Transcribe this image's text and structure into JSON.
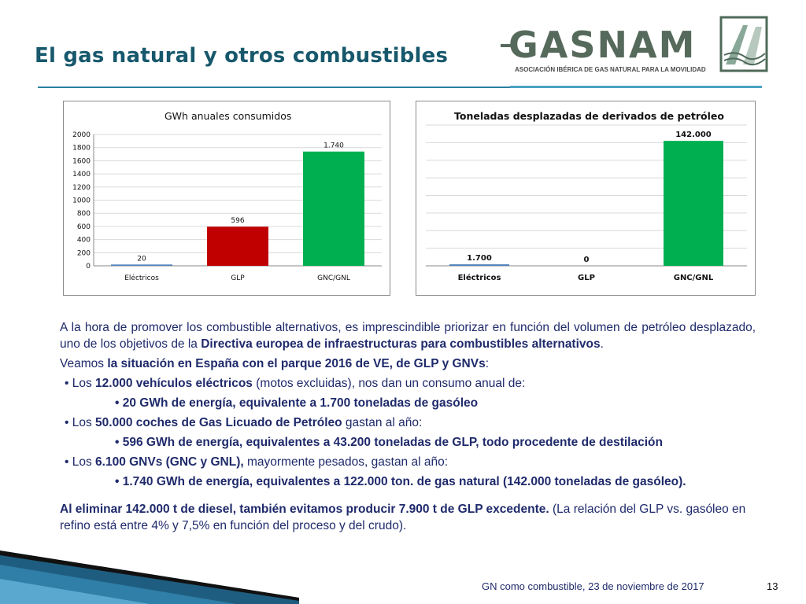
{
  "title": "El gas natural y otros combustibles",
  "logo": {
    "name": "GASNAM",
    "subtitle": "ASOCIACIÓN IBÉRICA DE GAS NATURAL PARA LA MOVILIDAD"
  },
  "colors": {
    "blue_bar": "#4f81bd",
    "red_bar": "#c00000",
    "green_bar": "#00b050",
    "title": "#17586c",
    "text": "#1f2a6b"
  },
  "chart_data": [
    {
      "type": "bar",
      "title": "GWh anuales consumidos",
      "categories": [
        "Eléctricos",
        "GLP",
        "GNC/GNL"
      ],
      "values": [
        20,
        596,
        1740
      ],
      "data_labels": [
        "20",
        "596",
        "1.740"
      ],
      "bar_colors": [
        "#4f81bd",
        "#c00000",
        "#00b050"
      ],
      "ylim": [
        0,
        2000
      ],
      "yticks": [
        0,
        200,
        400,
        600,
        800,
        1000,
        1200,
        1400,
        1600,
        1800,
        2000
      ],
      "grid": true,
      "legend": "none"
    },
    {
      "type": "bar",
      "title": "Toneladas desplazadas de derivados de petróleo",
      "categories": [
        "Eléctricos",
        "GLP",
        "GNC/GNL"
      ],
      "values": [
        1700,
        0,
        142000
      ],
      "data_labels": [
        "1.700",
        "0",
        "142.000"
      ],
      "bar_colors": [
        "#4f81bd",
        "#c00000",
        "#00b050"
      ],
      "ylim": [
        0,
        160000
      ],
      "grid": true,
      "legend": "none"
    }
  ],
  "body": {
    "p1_a": "A la hora de promover los combustible alternativos, es imprescindible priorizar en función del volumen de petróleo desplazado, uno de los objetivos de la ",
    "p1_b": "Directiva europea de infraestructuras para combustibles alternativos",
    "p1_c": ".",
    "p2_a": "Veamos ",
    "p2_b": "la situación en España con el parque 2016 de VE, de GLP y GNVs",
    "p2_c": ":",
    "b1_a": "• Los ",
    "b1_b": "12.000 vehículos eléctricos",
    "b1_c": " (motos excluidas), nos dan un consumo anual de:",
    "b1_sub": "•   20 GWh de energía, equivalente a 1.700 toneladas de gasóleo",
    "b2_a": "• Los ",
    "b2_b": "50.000 coches de Gas Licuado de Petróleo",
    "b2_c": " gastan al año:",
    "b2_sub": "•   596 GWh de energía, equivalentes a 43.200 toneladas de GLP, todo procedente de destilación",
    "b3_a": "• Los ",
    "b3_b": "6.100 GNVs (GNC y GNL),",
    "b3_c": " mayormente pesados, gastan al año:",
    "b3_sub": "•   1.740 GWh de energía, equivalentes a 122.000 ton. de gas natural (142.000 toneladas de gasóleo).",
    "p3_a": "Al eliminar 142.000 t de diesel, también evitamos producir 7.900 t de GLP excedente.",
    "p3_b": " (La relación del GLP vs. gasóleo en refino está entre 4% y 7,5% en función del proceso y del crudo)."
  },
  "footer": {
    "text": "GN como combustible, 23 de noviembre de 2017",
    "page": "13"
  }
}
